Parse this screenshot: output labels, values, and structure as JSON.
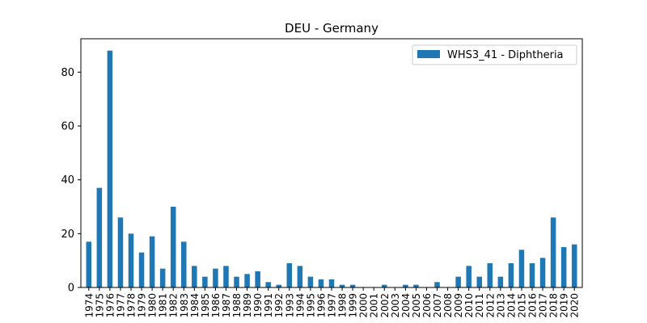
{
  "chart_data": {
    "type": "bar",
    "title": "DEU - Germany",
    "xlabel": "",
    "ylabel": "",
    "ylim": [
      0,
      92.4
    ],
    "yticks": [
      0,
      20,
      40,
      60,
      80
    ],
    "grid": false,
    "legend_position": "top-right",
    "categories": [
      "1974",
      "1975",
      "1976",
      "1977",
      "1978",
      "1979",
      "1980",
      "1981",
      "1982",
      "1983",
      "1984",
      "1985",
      "1986",
      "1987",
      "1988",
      "1989",
      "1990",
      "1991",
      "1992",
      "1993",
      "1994",
      "1995",
      "1996",
      "1997",
      "1998",
      "1999",
      "2000",
      "2001",
      "2002",
      "2003",
      "2004",
      "2005",
      "2006",
      "2007",
      "2008",
      "2009",
      "2010",
      "2011",
      "2012",
      "2013",
      "2014",
      "2015",
      "2016",
      "2017",
      "2018",
      "2019",
      "2020"
    ],
    "series": [
      {
        "name": "WHS3_41 - Diphtheria",
        "color": "#1f77b4",
        "values": [
          17,
          37,
          88,
          26,
          20,
          13,
          19,
          7,
          30,
          17,
          8,
          4,
          7,
          8,
          4,
          5,
          6,
          2,
          1,
          9,
          8,
          4,
          3,
          3,
          1,
          1,
          0,
          0,
          1,
          0,
          1,
          1,
          0,
          2,
          0,
          4,
          8,
          4,
          9,
          4,
          9,
          14,
          9,
          11,
          26,
          15,
          16
        ]
      }
    ]
  }
}
